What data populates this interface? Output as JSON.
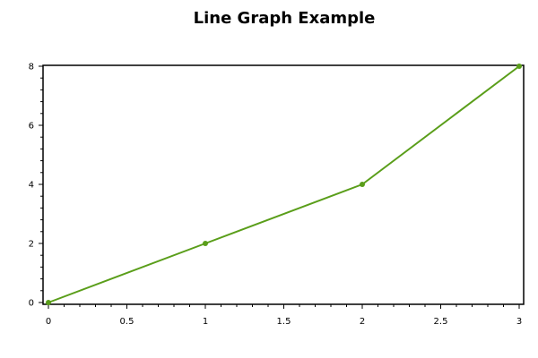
{
  "chart_data": {
    "type": "line",
    "title": "Line Graph Example",
    "xlabel": "",
    "ylabel": "",
    "xlim": [
      0,
      3
    ],
    "ylim": [
      0,
      8
    ],
    "x_ticks": [
      "0",
      "0.5",
      "1",
      "1.5",
      "2",
      "2.5",
      "3"
    ],
    "y_ticks": [
      "0",
      "2",
      "4",
      "6",
      "8"
    ],
    "grid": false,
    "series": [
      {
        "x": [
          0,
          1,
          2,
          3
        ],
        "y": [
          0,
          2,
          4,
          8
        ],
        "color": "#5a9e1a",
        "markers": true
      }
    ]
  }
}
